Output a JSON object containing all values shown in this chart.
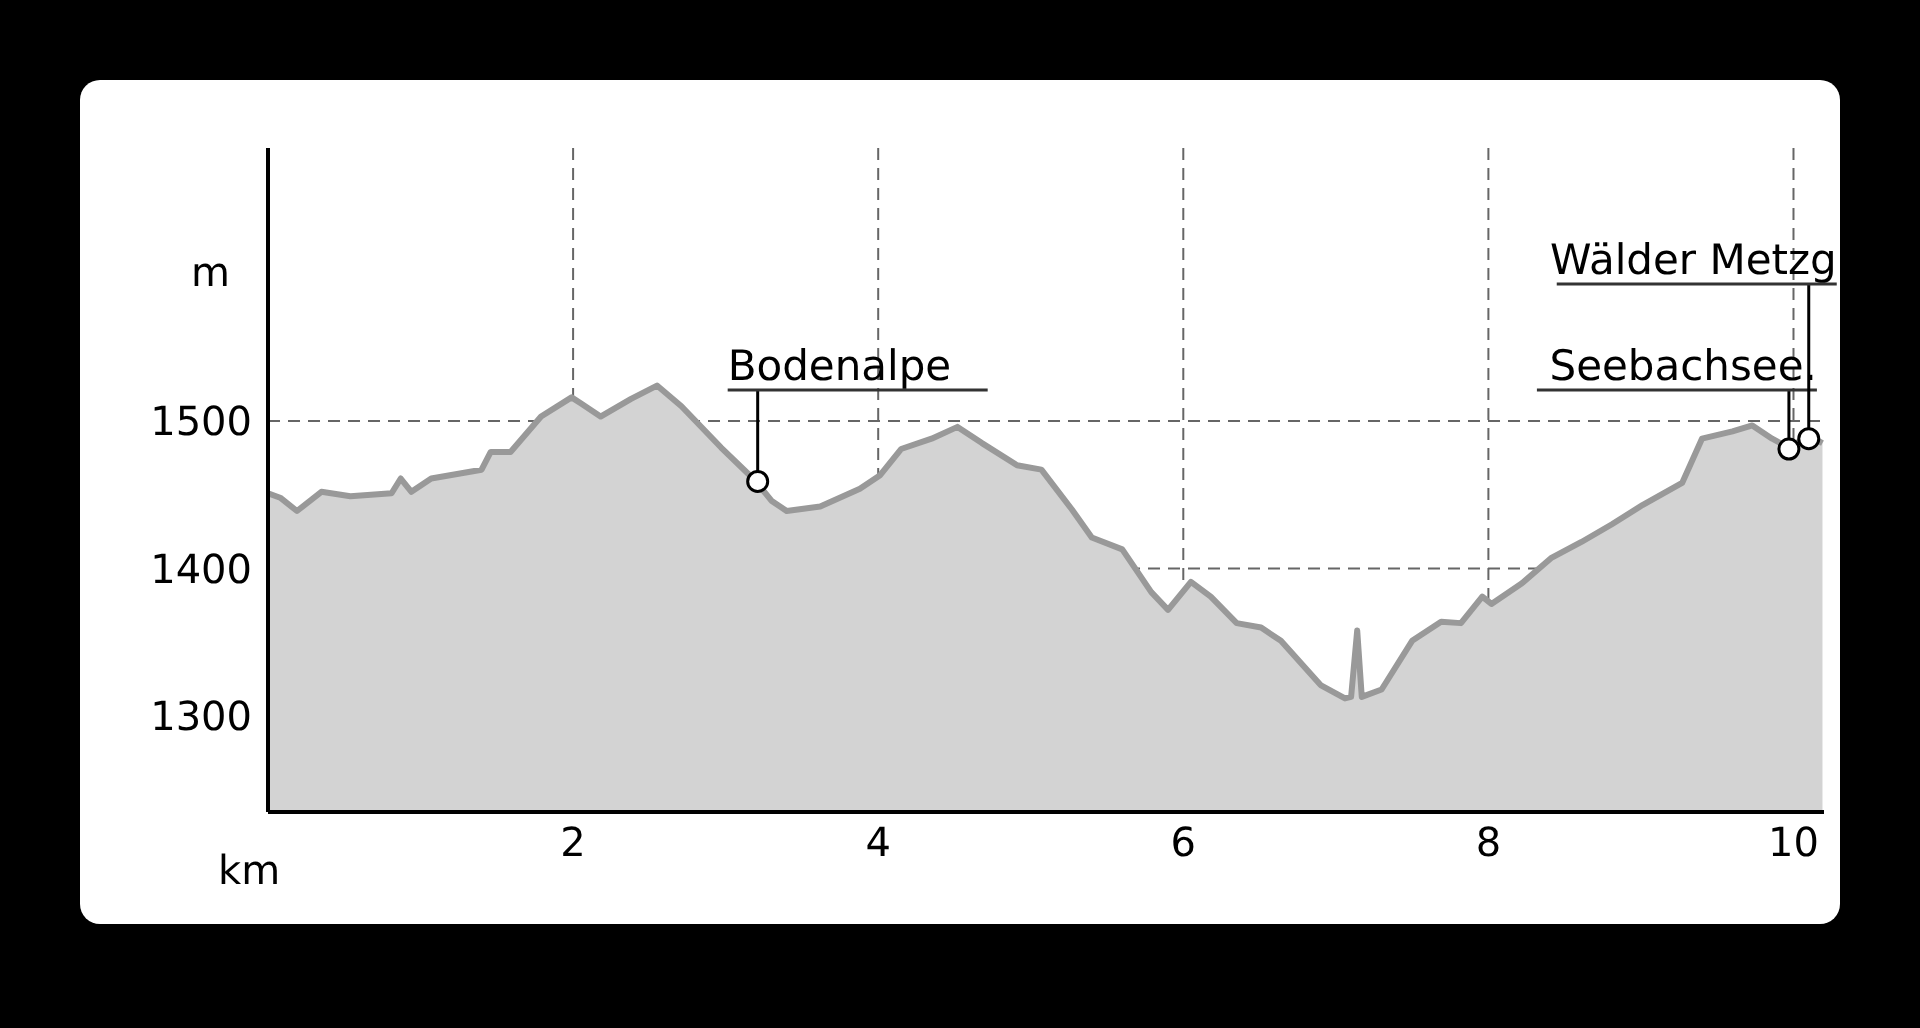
{
  "chart_data": {
    "type": "area",
    "xlabel": "km",
    "ylabel": "m",
    "x": [
      0,
      0.08,
      0.19,
      0.35,
      0.54,
      0.81,
      0.87,
      0.94,
      1.07,
      1.4,
      1.46,
      1.59,
      1.79,
      1.99,
      2.05,
      2.18,
      2.38,
      2.55,
      2.71,
      2.97,
      3.19,
      3.3,
      3.4,
      3.62,
      3.88,
      4.01,
      4.15,
      4.35,
      4.52,
      4.68,
      4.91,
      5.07,
      5.27,
      5.4,
      5.6,
      5.79,
      5.9,
      6.05,
      6.18,
      6.35,
      6.51,
      6.64,
      6.9,
      7.06,
      7.1,
      7.14,
      7.17,
      7.3,
      7.5,
      7.69,
      7.82,
      7.96,
      8.02,
      8.22,
      8.41,
      8.61,
      8.81,
      9.01,
      9.27,
      9.4,
      9.6,
      9.73,
      9.86,
      9.97,
      10.1,
      10.19
    ],
    "series": [
      {
        "color": "#999999",
        "values": [
          1451,
          1448,
          1439,
          1452,
          1449,
          1451,
          1461,
          1452,
          1461,
          1467,
          1479,
          1479,
          1503,
          1516,
          1512,
          1503,
          1515,
          1524,
          1510,
          1482,
          1460,
          1446,
          1439,
          1442,
          1454,
          1463,
          1481,
          1488,
          1496,
          1485,
          1470,
          1467,
          1440,
          1421,
          1413,
          1384,
          1372,
          1391,
          1381,
          1363,
          1360,
          1351,
          1321,
          1312,
          1313,
          1358,
          1313,
          1318,
          1351,
          1364,
          1363,
          1381,
          1376,
          1390,
          1407,
          1418,
          1430,
          1443,
          1458,
          1488,
          1493,
          1497,
          1488,
          1482,
          1490,
          1485
        ]
      }
    ],
    "xlim": [
      0,
      10.2
    ],
    "xticks": [
      2,
      4,
      6,
      8,
      10
    ],
    "ylim": [
      1235,
      1685
    ],
    "yticks": [
      1300,
      1400,
      1500
    ],
    "grid": true,
    "legend": false,
    "marker": "none",
    "annotations": [
      {
        "text": "Bodenalpe",
        "x": 3.21,
        "y": 1459
      },
      {
        "text": "Seebachsee.",
        "x": 9.97,
        "y": 1481
      },
      {
        "text": "Wälder Metzg",
        "x": 10.1,
        "y": 1488
      }
    ]
  }
}
